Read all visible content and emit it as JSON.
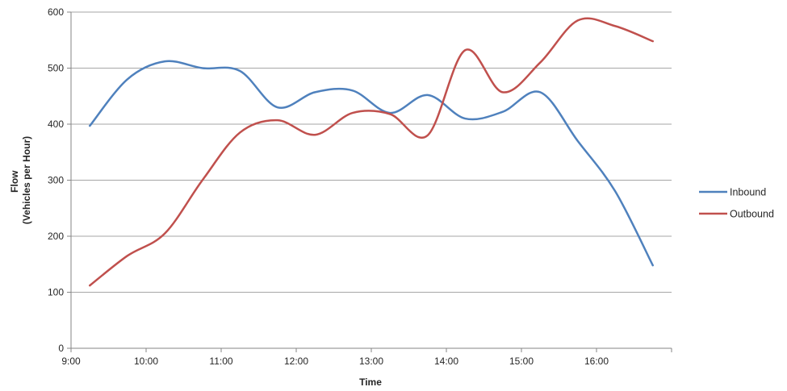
{
  "chart_data": {
    "type": "line",
    "title": "",
    "xlabel": "Time",
    "ylabel_lines": [
      "Flow",
      "(Vehicles per Hour)"
    ],
    "xlim": [
      9.0,
      17.0
    ],
    "ylim": [
      0,
      600
    ],
    "x_ticks": [
      {
        "value": 9,
        "label": "9:00"
      },
      {
        "value": 10,
        "label": "10:00"
      },
      {
        "value": 11,
        "label": "11:00"
      },
      {
        "value": 12,
        "label": "12:00"
      },
      {
        "value": 13,
        "label": "13:00"
      },
      {
        "value": 14,
        "label": "14:00"
      },
      {
        "value": 15,
        "label": "15:00"
      },
      {
        "value": 16,
        "label": "16:00"
      }
    ],
    "y_ticks": [
      0,
      100,
      200,
      300,
      400,
      500,
      600
    ],
    "grid": "horizontal",
    "legend_position": "right",
    "series": [
      {
        "name": "Inbound",
        "color": "#4f81bd",
        "x": [
          9.25,
          9.75,
          10.25,
          10.75,
          11.25,
          11.75,
          12.25,
          12.75,
          13.25,
          13.75,
          14.25,
          14.75,
          15.25,
          15.75,
          16.25,
          16.75
        ],
        "y": [
          397,
          480,
          512,
          500,
          495,
          430,
          457,
          460,
          420,
          452,
          410,
          422,
          457,
          370,
          280,
          148
        ]
      },
      {
        "name": "Outbound",
        "color": "#c0504d",
        "x": [
          9.25,
          9.75,
          10.25,
          10.75,
          11.25,
          11.75,
          12.25,
          12.75,
          13.25,
          13.75,
          14.25,
          14.75,
          15.25,
          15.75,
          16.25,
          16.75
        ],
        "y": [
          112,
          165,
          205,
          300,
          385,
          407,
          381,
          420,
          418,
          380,
          532,
          457,
          510,
          585,
          575,
          548
        ]
      }
    ]
  }
}
